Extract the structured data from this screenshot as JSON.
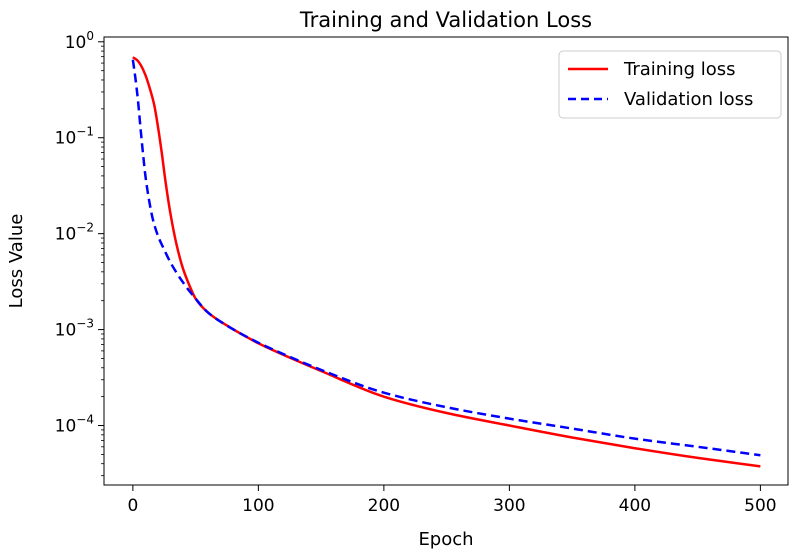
{
  "chart_data": {
    "type": "line",
    "title": "Training and Validation Loss",
    "xlabel": "Epoch",
    "ylabel": "Loss Value",
    "yscale": "log",
    "xlim": [
      -23,
      522
    ],
    "ylim_log10": [
      -4.62,
      0.05
    ],
    "xticks": [
      0,
      100,
      200,
      300,
      400,
      500
    ],
    "xtick_labels": [
      "0",
      "100",
      "200",
      "300",
      "400",
      "500"
    ],
    "yticks": [
      1,
      0.1,
      0.01,
      0.001,
      0.0001
    ],
    "ytick_labels": [
      {
        "base": "10",
        "exp": "0"
      },
      {
        "base": "10",
        "exp": "−1"
      },
      {
        "base": "10",
        "exp": "−2"
      },
      {
        "base": "10",
        "exp": "−3"
      },
      {
        "base": "10",
        "exp": "−4"
      }
    ],
    "legend_position": "top-right",
    "series": [
      {
        "name": "Training loss",
        "color": "#ff0000",
        "style": "solid",
        "x": [
          0,
          3,
          6,
          10,
          14,
          17,
          20,
          23,
          26,
          30,
          35,
          40,
          45,
          50,
          60,
          75,
          100,
          125,
          150,
          200,
          250,
          300,
          350,
          400,
          450,
          500
        ],
        "y": [
          0.69,
          0.65,
          0.58,
          0.45,
          0.31,
          0.22,
          0.13,
          0.07,
          0.035,
          0.016,
          0.0075,
          0.0043,
          0.0029,
          0.0021,
          0.0015,
          0.0011,
          0.00072,
          0.00051,
          0.00037,
          0.0002,
          0.000135,
          0.0001,
          7.5e-05,
          5.8e-05,
          4.6e-05,
          3.75e-05
        ]
      },
      {
        "name": "Validation loss",
        "color": "#0000ff",
        "style": "dashed",
        "x": [
          0,
          2,
          4,
          6,
          8,
          10,
          13,
          16,
          20,
          25,
          30,
          40,
          50,
          60,
          75,
          100,
          125,
          150,
          200,
          250,
          300,
          350,
          400,
          450,
          500
        ],
        "y": [
          0.65,
          0.42,
          0.25,
          0.13,
          0.07,
          0.04,
          0.022,
          0.014,
          0.0095,
          0.0068,
          0.005,
          0.0031,
          0.0021,
          0.0015,
          0.0011,
          0.00073,
          0.00052,
          0.00038,
          0.00022,
          0.000155,
          0.000118,
          9.3e-05,
          7.3e-05,
          6e-05,
          4.9e-05
        ]
      }
    ]
  }
}
